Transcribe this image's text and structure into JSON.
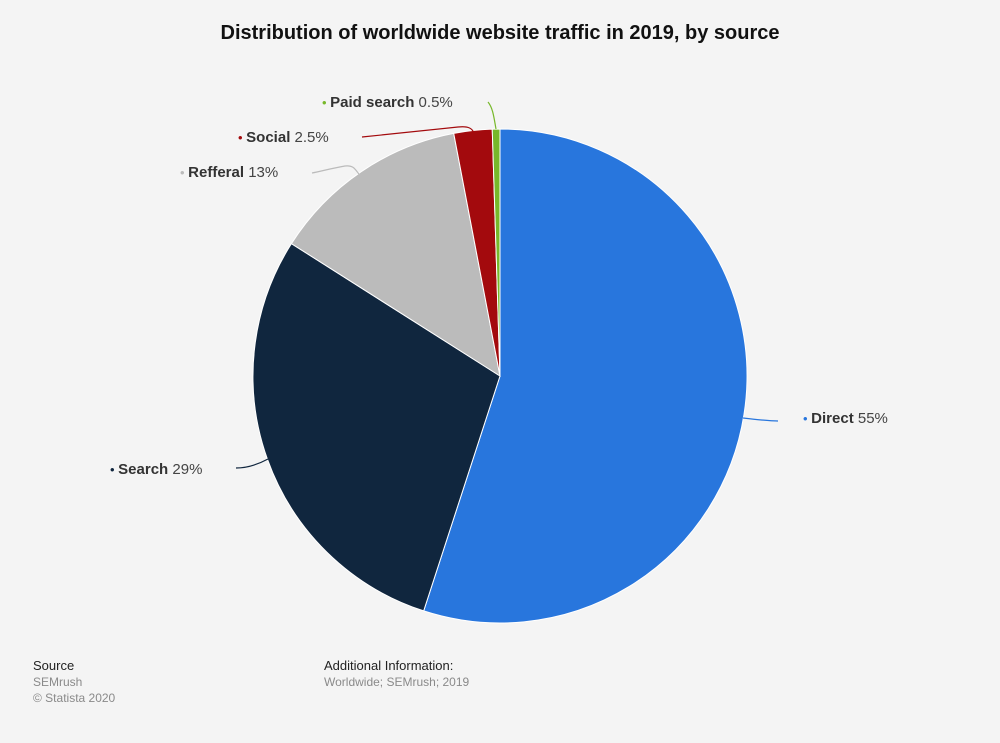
{
  "chart_data": {
    "type": "pie",
    "title": "Distribution of worldwide website traffic in 2019, by source",
    "slices": [
      {
        "name": "Direct",
        "value": 55,
        "value_label": "55%",
        "color": "#2876dd"
      },
      {
        "name": "Search",
        "value": 29,
        "value_label": "29%",
        "color": "#10263e"
      },
      {
        "name": "Refferal",
        "value": 13,
        "value_label": "13%",
        "color": "#bbbbbb"
      },
      {
        "name": "Social",
        "value": 2.5,
        "value_label": "2.5%",
        "color": "#a30a0d"
      },
      {
        "name": "Paid search",
        "value": 0.5,
        "value_label": "0.5%",
        "color": "#77b82a"
      }
    ]
  },
  "footer": {
    "source_heading": "Source",
    "source_name": "SEMrush",
    "copyright": "© Statista 2020",
    "info_heading": "Additional Information:",
    "info_text": "Worldwide; SEMrush; 2019"
  }
}
